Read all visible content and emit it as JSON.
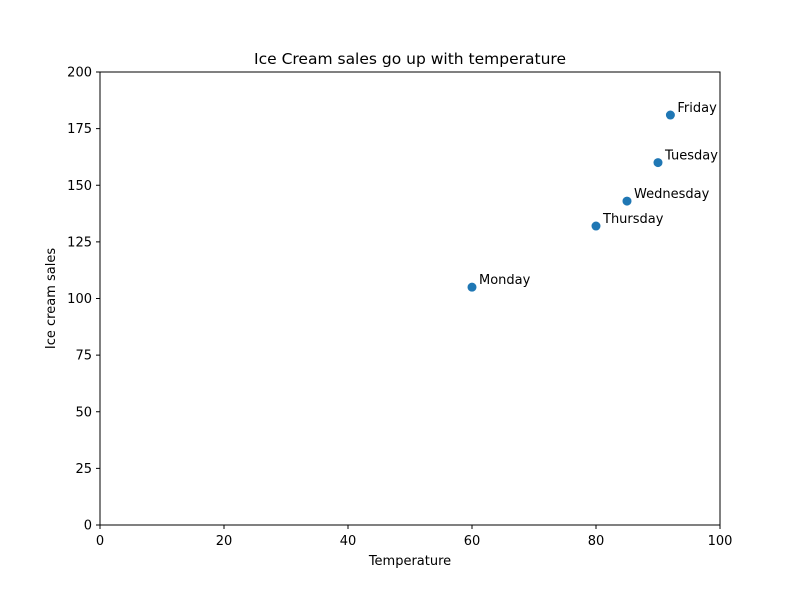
{
  "chart_data": {
    "type": "scatter",
    "title": "Ice Cream sales go up with temperature",
    "xlabel": "Temperature",
    "ylabel": "Ice cream sales",
    "xlim": [
      0,
      100
    ],
    "ylim": [
      0,
      200
    ],
    "xticks": [
      0,
      20,
      40,
      60,
      80,
      100
    ],
    "yticks": [
      0,
      25,
      50,
      75,
      100,
      125,
      150,
      175,
      200
    ],
    "grid": false,
    "marker_color": "#1f77b4",
    "points": [
      {
        "label": "Monday",
        "x": 60,
        "y": 105
      },
      {
        "label": "Tuesday",
        "x": 90,
        "y": 160
      },
      {
        "label": "Wednesday",
        "x": 85,
        "y": 143
      },
      {
        "label": "Thursday",
        "x": 80,
        "y": 132
      },
      {
        "label": "Friday",
        "x": 92,
        "y": 181
      }
    ]
  }
}
